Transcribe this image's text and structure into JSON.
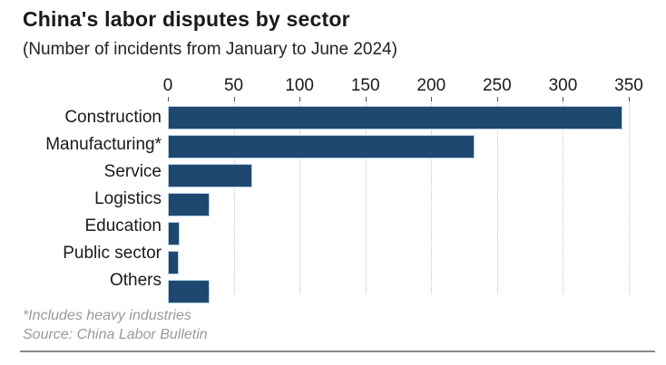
{
  "header": {
    "title": "China's labor disputes by sector",
    "subtitle": "(Number of incidents from January to June 2024)"
  },
  "footer": {
    "footnote": "*Includes heavy industries",
    "source": "Source: China Labor Bulletin"
  },
  "colors": {
    "bar": "#1e4870",
    "bar_edge": "#b8cfe5",
    "grid": "#c6c6c6",
    "text": "#1a1a1a",
    "muted_text": "#9a9a9a",
    "rule": "#888888"
  },
  "chart_data": {
    "type": "bar",
    "orientation": "horizontal",
    "title": "China's labor disputes by sector",
    "subtitle": "(Number of incidents from January to June 2024)",
    "categories": [
      "Construction",
      "Manufacturing*",
      "Service",
      "Logistics",
      "Education",
      "Public sector",
      "Others"
    ],
    "values": [
      345,
      233,
      64,
      32,
      9,
      8,
      32
    ],
    "xlabel": "",
    "ylabel": "",
    "x_ticks": [
      0,
      50,
      100,
      150,
      200,
      250,
      300,
      350
    ],
    "xlim": [
      0,
      350
    ],
    "grid": "vertical-dotted",
    "axis_position": "top",
    "legend": "none",
    "footnote": "*Includes heavy industries",
    "source": "Source: China Labor Bulletin"
  }
}
